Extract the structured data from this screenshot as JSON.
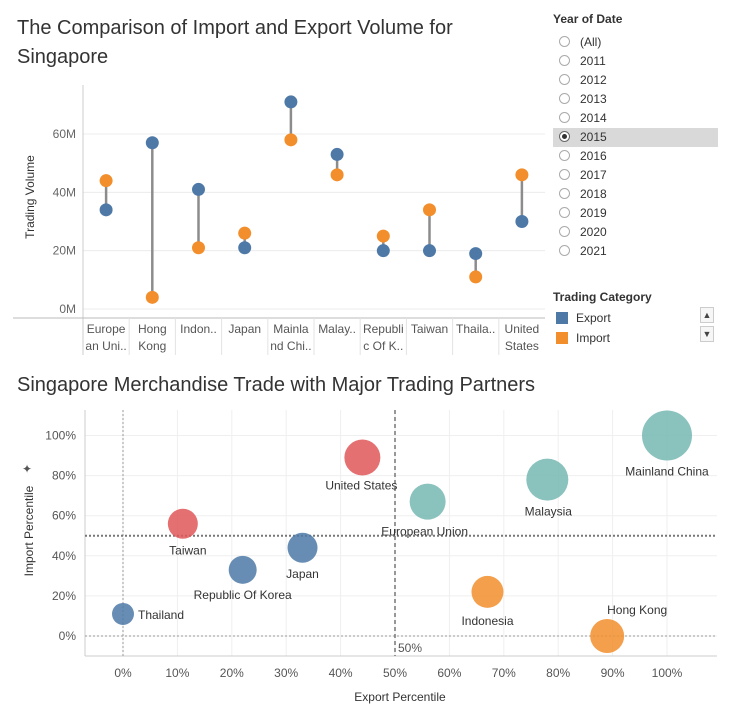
{
  "dashboard": {
    "title1": "The Comparison of Import and Export Volume for Singapore",
    "title2": "Singapore Merchandise Trade with Major Trading Partners",
    "pin_glyph": "✦"
  },
  "filter": {
    "title": "Year of Date",
    "options": [
      "(All)",
      "2011",
      "2012",
      "2013",
      "2014",
      "2015",
      "2016",
      "2017",
      "2018",
      "2019",
      "2020",
      "2021"
    ],
    "selected": "2015"
  },
  "legend": {
    "title": "Trading Category",
    "items": [
      {
        "label": "Export",
        "color": "#4e79a7"
      },
      {
        "label": "Import",
        "color": "#f28e2b"
      }
    ],
    "scroll_up": "▲",
    "scroll_down": "▼"
  },
  "chart_data": [
    {
      "type": "dumbbell",
      "title": "The Comparison of Import and Export Volume for Singapore",
      "ylabel": "Trading Volume",
      "ylim": [
        0,
        70
      ],
      "yticks": [
        0,
        20,
        40,
        60
      ],
      "ytick_labels": [
        "0M",
        "20M",
        "40M",
        "60M"
      ],
      "categories": [
        [
          "Europe",
          "an Uni.."
        ],
        [
          "Hong",
          "Kong"
        ],
        [
          "Indon.."
        ],
        [
          "Japan"
        ],
        [
          "Mainla",
          "nd Chi.."
        ],
        [
          "Malay.."
        ],
        [
          "Republi",
          "c Of K.."
        ],
        [
          "Taiwan"
        ],
        [
          "Thaila.."
        ],
        [
          "United",
          "States"
        ]
      ],
      "series": [
        {
          "name": "Export",
          "color": "#4e79a7",
          "values": [
            34,
            57,
            41,
            21,
            71,
            53,
            20,
            20,
            19,
            30
          ]
        },
        {
          "name": "Import",
          "color": "#f28e2b",
          "values": [
            44,
            4,
            21,
            26,
            58,
            46,
            25,
            34,
            11,
            46
          ]
        }
      ]
    },
    {
      "type": "scatter",
      "title": "Singapore Merchandise Trade with Major Trading Partners",
      "xlabel": "Export Percentile",
      "ylabel": "Import Percentile",
      "xlim": [
        -7,
        109
      ],
      "ylim": [
        -12,
        110
      ],
      "xticks": [
        0,
        10,
        20,
        30,
        40,
        50,
        60,
        70,
        80,
        90,
        100
      ],
      "yticks": [
        0,
        20,
        40,
        60,
        80,
        100
      ],
      "reference_lines": {
        "x": 50,
        "y": 50,
        "x_label": "50%"
      },
      "points": [
        {
          "label": "Thailand",
          "x": 0,
          "y": 11,
          "size": 11,
          "color": "#4e79a7"
        },
        {
          "label": "Taiwan",
          "x": 11,
          "y": 56,
          "size": 15,
          "color": "#e15759"
        },
        {
          "label": "Republic Of Korea",
          "x": 22,
          "y": 33,
          "size": 14,
          "color": "#4e79a7"
        },
        {
          "label": "Japan",
          "x": 33,
          "y": 44,
          "size": 15,
          "color": "#4e79a7"
        },
        {
          "label": "United States",
          "x": 44,
          "y": 89,
          "size": 18,
          "color": "#e15759"
        },
        {
          "label": "European Union",
          "x": 56,
          "y": 67,
          "size": 18,
          "color": "#76b7b2"
        },
        {
          "label": "Indonesia",
          "x": 67,
          "y": 22,
          "size": 16,
          "color": "#f28e2b"
        },
        {
          "label": "Malaysia",
          "x": 78,
          "y": 78,
          "size": 21,
          "color": "#76b7b2"
        },
        {
          "label": "Hong Kong",
          "x": 89,
          "y": 0,
          "size": 17,
          "color": "#f28e2b"
        },
        {
          "label": "Mainland China",
          "x": 100,
          "y": 100,
          "size": 25,
          "color": "#76b7b2"
        }
      ]
    }
  ]
}
